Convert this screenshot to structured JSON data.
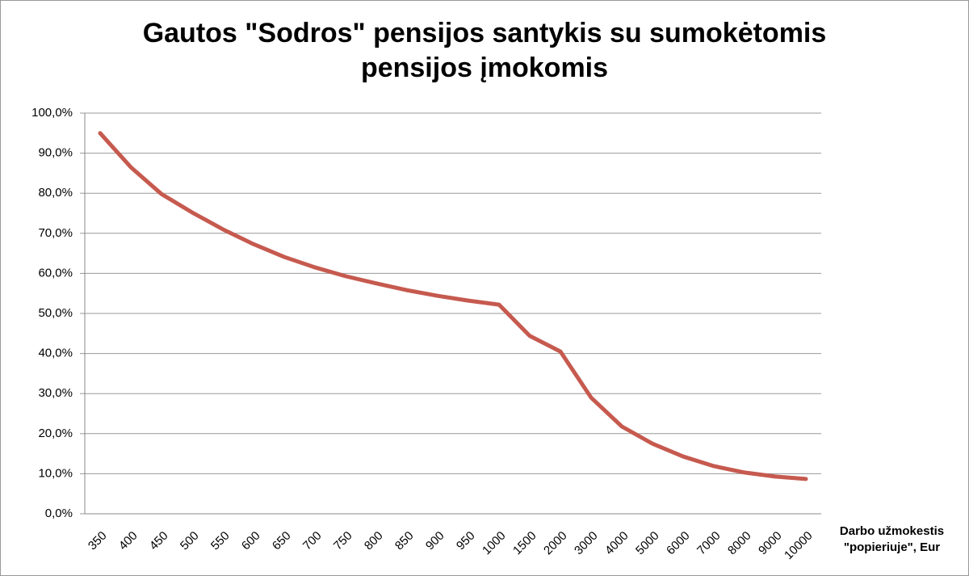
{
  "chart_data": {
    "type": "line",
    "title": "Gautos \"Sodros\" pensijos santykis su sumokėtomis pensijos įmokomis",
    "x_label": "Darbo užmokestis \"popieriuje\", Eur",
    "categories": [
      "350",
      "400",
      "450",
      "500",
      "550",
      "600",
      "650",
      "700",
      "750",
      "800",
      "850",
      "900",
      "950",
      "1000",
      "1500",
      "2000",
      "3000",
      "4000",
      "5000",
      "6000",
      "7000",
      "8000",
      "9000",
      "10000"
    ],
    "series": [
      {
        "color": "#c65a4f",
        "values": [
          95.0,
          86.5,
          79.8,
          75.2,
          71.0,
          67.3,
          64.1,
          61.5,
          59.3,
          57.5,
          55.8,
          54.4,
          53.2,
          52.2,
          44.4,
          40.5,
          29.0,
          21.8,
          17.5,
          14.3,
          11.9,
          10.3,
          9.3,
          8.7
        ]
      }
    ],
    "ylim": [
      0,
      100
    ],
    "yticks": [
      {
        "value": 0,
        "label": "0,0%"
      },
      {
        "value": 10,
        "label": "10,0%"
      },
      {
        "value": 20,
        "label": "20,0%"
      },
      {
        "value": 30,
        "label": "30,0%"
      },
      {
        "value": 40,
        "label": "40,0%"
      },
      {
        "value": 50,
        "label": "50,0%"
      },
      {
        "value": 60,
        "label": "60,0%"
      },
      {
        "value": 70,
        "label": "70,0%"
      },
      {
        "value": 80,
        "label": "80,0%"
      },
      {
        "value": 90,
        "label": "90,0%"
      },
      {
        "value": 100,
        "label": "100,0%"
      }
    ],
    "grid": true
  }
}
